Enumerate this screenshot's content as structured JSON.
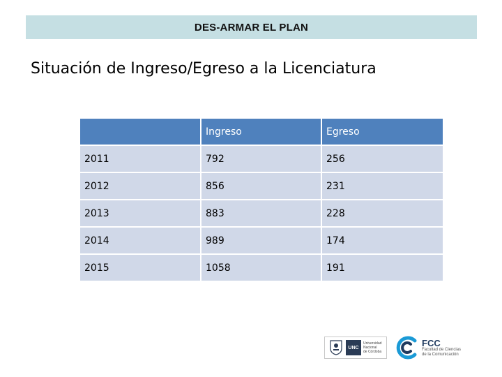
{
  "header": {
    "title": "DES-ARMAR EL PLAN"
  },
  "slide": {
    "title": "Situación de Ingreso/Egreso a la Licenciatura"
  },
  "table": {
    "columns": [
      "",
      "Ingreso",
      "Egreso"
    ],
    "rows": [
      [
        "2011",
        "792",
        "256"
      ],
      [
        "2012",
        "856",
        "231"
      ],
      [
        "2013",
        "883",
        "228"
      ],
      [
        "2014",
        "989",
        "174"
      ],
      [
        "2015",
        "1058",
        "191"
      ]
    ]
  },
  "logos": {
    "unc": {
      "abbr": "UNC",
      "line1": "Universidad",
      "line2": "Nacional",
      "line3": "de Córdoba"
    },
    "fcc": {
      "abbr": "FCC",
      "line1": "Facultad de Ciencias",
      "line2": "de la Comunicación"
    }
  },
  "colors": {
    "header_bar": "#c5dfe3",
    "table_header": "#4f81bd",
    "table_cell": "#d0d8e8",
    "fcc_blue": "#1a9ad6",
    "unc_navy": "#2a3b55"
  }
}
